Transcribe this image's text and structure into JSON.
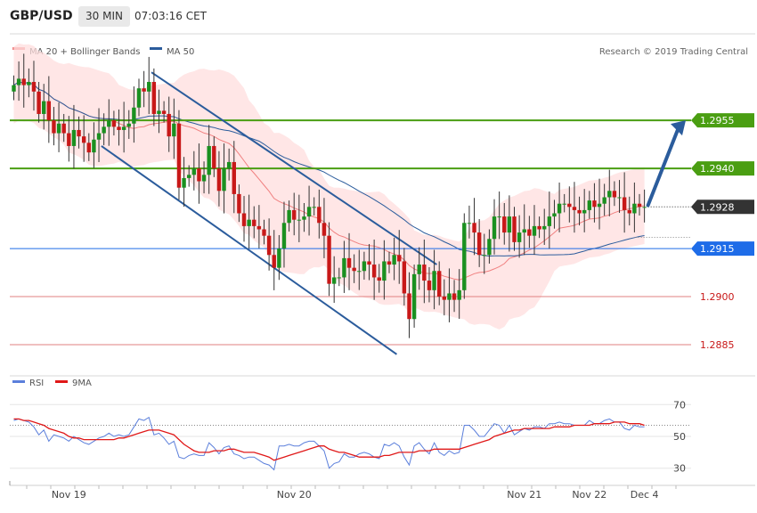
{
  "header": {
    "symbol": "GBP/USD",
    "timeframe": "30 MIN",
    "time": "07:03:16 CET"
  },
  "legend": {
    "ma20_label": "MA 20 + Bollinger Bands",
    "ma50_label": "MA 50",
    "ma20_color": "#f08080",
    "ma50_color": "#2b5c9c",
    "band_color": "#ffdede"
  },
  "copyright": "Research © 2019 Trading Central",
  "rsi_legend": {
    "rsi_label": "RSI",
    "ma_label": "9MA",
    "rsi_color": "#5b7fdb",
    "ma_color": "#e01818"
  },
  "levels": [
    {
      "value": 1.2955,
      "label": "1.2955",
      "kind": "resistance",
      "color": "#4a9e12"
    },
    {
      "value": 1.294,
      "label": "1.2940",
      "kind": "resistance",
      "color": "#4a9e12"
    },
    {
      "value": 1.2928,
      "label": "1.2928",
      "kind": "current",
      "color": "#333333"
    },
    {
      "value": 1.2915,
      "label": "1.2915",
      "kind": "pivot",
      "color": "#1e6ce8"
    },
    {
      "value": 1.29,
      "label": "1.2900",
      "kind": "support",
      "color": "#e08080"
    },
    {
      "value": 1.2885,
      "label": "1.2885",
      "kind": "support",
      "color": "#e08080"
    }
  ],
  "chart_data": [
    {
      "type": "candlestick",
      "ylim": [
        1.288,
        1.2972
      ],
      "bullish_color": "#1a9020",
      "bearish_color": "#c81818",
      "x_labels": [
        {
          "label": "Nov 19",
          "index": 11
        },
        {
          "label": "Nov 20",
          "index": 56
        },
        {
          "label": "Nov 21",
          "index": 102
        },
        {
          "label": "Nov 22",
          "index": 115
        },
        {
          "label": "Dec 4",
          "index": 126
        }
      ],
      "close": [
        1.2966,
        1.2968,
        1.2966,
        1.2967,
        1.2964,
        1.2957,
        1.2961,
        1.2955,
        1.2951,
        1.2954,
        1.2951,
        1.2947,
        1.2952,
        1.295,
        1.2948,
        1.2945,
        1.2949,
        1.2951,
        1.2953,
        1.2955,
        1.2953,
        1.2952,
        1.2953,
        1.2954,
        1.2959,
        1.2965,
        1.2964,
        1.2967,
        1.2957,
        1.2958,
        1.2957,
        1.295,
        1.2954,
        1.2934,
        1.2937,
        1.2938,
        1.294,
        1.2936,
        1.2938,
        1.2947,
        1.294,
        1.2933,
        1.294,
        1.2942,
        1.2932,
        1.2926,
        1.2922,
        1.2924,
        1.2922,
        1.2921,
        1.2919,
        1.2913,
        1.2909,
        1.2915,
        1.2923,
        1.2927,
        1.2924,
        1.2924,
        1.2925,
        1.2928,
        1.2928,
        1.2923,
        1.2919,
        1.2904,
        1.2906,
        1.2906,
        1.2912,
        1.2909,
        1.2908,
        1.2908,
        1.2911,
        1.291,
        1.2906,
        1.2905,
        1.2911,
        1.291,
        1.2913,
        1.2911,
        1.2901,
        1.2893,
        1.2907,
        1.291,
        1.2905,
        1.2902,
        1.2908,
        1.29,
        1.2899,
        1.2901,
        1.2899,
        1.2902,
        1.2923,
        1.2923,
        1.292,
        1.2913,
        1.2913,
        1.2918,
        1.2925,
        1.2925,
        1.292,
        1.2925,
        1.2917,
        1.292,
        1.2921,
        1.2919,
        1.2922,
        1.2921,
        1.2922,
        1.2925,
        1.2926,
        1.2929,
        1.2929,
        1.2928,
        1.2927,
        1.2926,
        1.2927,
        1.293,
        1.2928,
        1.2929,
        1.2931,
        1.2933,
        1.2931,
        1.2931,
        1.2927,
        1.2926,
        1.2929,
        1.2928,
        1.2928
      ]
    },
    {
      "type": "line",
      "title": "RSI",
      "ylim": [
        22,
        78
      ],
      "y_ticks": [
        30,
        50,
        70
      ],
      "reference_line": 57,
      "series": [
        {
          "name": "RSI",
          "values": [
            60,
            61,
            60,
            59,
            56,
            51,
            54,
            47,
            51,
            50,
            49,
            47,
            50,
            48,
            46,
            45,
            47,
            49,
            50,
            52,
            50,
            51,
            50,
            51,
            56,
            61,
            60,
            62,
            51,
            52,
            49,
            45,
            47,
            37,
            36,
            38,
            39,
            38,
            38,
            46,
            43,
            39,
            43,
            44,
            39,
            38,
            36,
            37,
            37,
            35,
            33,
            32,
            29,
            44,
            44,
            45,
            44,
            44,
            46,
            47,
            47,
            44,
            41,
            30,
            33,
            34,
            39,
            37,
            37,
            39,
            40,
            39,
            37,
            36,
            45,
            44,
            46,
            44,
            37,
            32,
            44,
            46,
            42,
            39,
            46,
            40,
            38,
            41,
            39,
            40,
            57,
            57,
            54,
            50,
            50,
            54,
            58,
            57,
            52,
            57,
            51,
            53,
            55,
            54,
            56,
            56,
            55,
            58,
            58,
            59,
            58,
            58,
            57,
            57,
            57,
            60,
            58,
            58,
            60,
            61,
            59,
            59,
            55,
            54,
            57,
            56,
            56
          ]
        },
        {
          "name": "9MA",
          "values": [
            61,
            61,
            60,
            60,
            59,
            58,
            57,
            55,
            54,
            53,
            52,
            50,
            49,
            49,
            48,
            48,
            48,
            48,
            48,
            48,
            48,
            49,
            49,
            50,
            51,
            52,
            53,
            54,
            54,
            54,
            53,
            52,
            51,
            48,
            45,
            43,
            41,
            40,
            40,
            40,
            41,
            41,
            41,
            42,
            42,
            41,
            40,
            40,
            40,
            39,
            38,
            37,
            35,
            36,
            37,
            38,
            39,
            40,
            41,
            42,
            43,
            44,
            44,
            42,
            41,
            40,
            40,
            39,
            38,
            37,
            37,
            37,
            37,
            37,
            38,
            38,
            39,
            40,
            40,
            40,
            40,
            41,
            41,
            41,
            42,
            42,
            42,
            42,
            42,
            42,
            43,
            44,
            45,
            46,
            47,
            48,
            50,
            51,
            52,
            53,
            54,
            54,
            55,
            55,
            55,
            55,
            55,
            55,
            56,
            56,
            56,
            56,
            57,
            57,
            57,
            57,
            58,
            58,
            58,
            58,
            59,
            59,
            59,
            58,
            58,
            58,
            57
          ]
        }
      ]
    }
  ]
}
